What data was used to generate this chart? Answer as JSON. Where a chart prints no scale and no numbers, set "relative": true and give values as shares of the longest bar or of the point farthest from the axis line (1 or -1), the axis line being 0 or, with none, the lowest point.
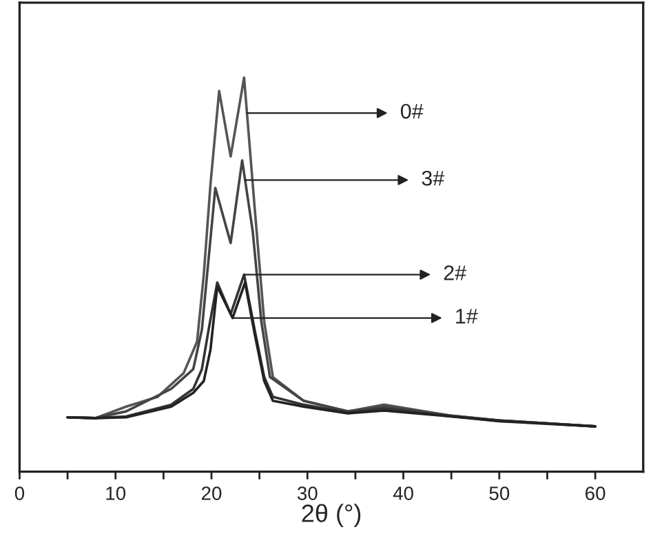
{
  "chart_data": {
    "type": "line",
    "relative": true,
    "xlabel": "2θ (°)",
    "xlim": [
      0,
      65
    ],
    "xticks": [
      0,
      {
        "value": 5,
        "label": null
      },
      10,
      {
        "value": 15,
        "label": null
      },
      20,
      {
        "value": 25,
        "label": null
      },
      30,
      {
        "value": 35,
        "label": null
      },
      40,
      {
        "value": 45,
        "label": null
      },
      50,
      {
        "value": 55,
        "label": null
      },
      60
    ],
    "grid": false,
    "legend": false,
    "marker": "none",
    "line_style": "solid",
    "series": [
      {
        "color": "#555555",
        "x": [
          5.0,
          7.9,
          11.1,
          14.4,
          17.1,
          18.5,
          19.2,
          19.9,
          20.8,
          22.0,
          23.4,
          24.5,
          25.5,
          26.4,
          29.6,
          34.2,
          38.0,
          45.0,
          50.0,
          60.0
        ],
        "values": [
          0.138,
          0.136,
          0.165,
          0.19,
          0.25,
          0.33,
          0.5,
          0.73,
          0.966,
          0.8,
          1.0,
          0.67,
          0.38,
          0.24,
          0.18,
          0.153,
          0.17,
          0.142,
          0.13,
          0.115
        ]
      },
      {
        "color": "#444444",
        "x": [
          5.0,
          7.9,
          11.1,
          15.8,
          18.1,
          19.0,
          19.7,
          20.4,
          22.0,
          23.2,
          24.3,
          25.2,
          26.1,
          29.6,
          34.2,
          38.0,
          45.0,
          50.0,
          60.0
        ],
        "values": [
          0.138,
          0.136,
          0.153,
          0.21,
          0.26,
          0.36,
          0.54,
          0.72,
          0.58,
          0.79,
          0.61,
          0.38,
          0.24,
          0.18,
          0.153,
          0.165,
          0.142,
          0.13,
          0.115
        ]
      },
      {
        "color": "#333333",
        "x": [
          5.0,
          7.9,
          11.1,
          15.8,
          18.1,
          19.0,
          19.7,
          20.6,
          22.0,
          23.4,
          24.5,
          25.5,
          26.4,
          29.6,
          34.2,
          38.0,
          45.0,
          50.0,
          60.0
        ],
        "values": [
          0.138,
          0.136,
          0.14,
          0.17,
          0.21,
          0.26,
          0.36,
          0.48,
          0.4,
          0.5,
          0.36,
          0.24,
          0.19,
          0.17,
          0.15,
          0.16,
          0.14,
          0.13,
          0.115
        ]
      },
      {
        "color": "#222222",
        "x": [
          5.0,
          7.9,
          11.1,
          15.8,
          18.1,
          19.2,
          19.9,
          20.6,
          22.2,
          23.5,
          24.5,
          25.5,
          26.4,
          29.6,
          34.2,
          38.0,
          45.0,
          50.0,
          60.0
        ],
        "values": [
          0.138,
          0.136,
          0.138,
          0.165,
          0.2,
          0.23,
          0.31,
          0.47,
          0.39,
          0.48,
          0.35,
          0.23,
          0.18,
          0.165,
          0.148,
          0.155,
          0.14,
          0.128,
          0.115
        ]
      }
    ],
    "annotations": [
      {
        "text": "0#",
        "x": 23.7,
        "y": 0.91
      },
      {
        "text": "3#",
        "x": 23.5,
        "y": 0.74
      },
      {
        "text": "2#",
        "x": 23.4,
        "y": 0.5
      },
      {
        "text": "1#",
        "x": 22.2,
        "y": 0.39
      }
    ]
  }
}
